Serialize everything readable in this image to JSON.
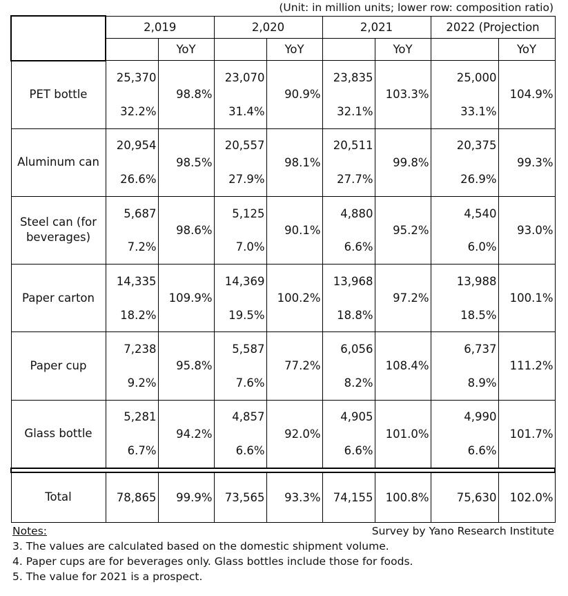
{
  "unit_note": "(Unit: in million units; lower row: composition ratio)",
  "years": [
    "2,019",
    "2,020",
    "2,021",
    "2022 (Projection"
  ],
  "yoy_label": "YoY",
  "rows": [
    {
      "label": "PET bottle",
      "values": [
        {
          "value": "25,370",
          "yoy": "98.8%",
          "ratio": "32.2%"
        },
        {
          "value": "23,070",
          "yoy": "90.9%",
          "ratio": "31.4%"
        },
        {
          "value": "23,835",
          "yoy": "103.3%",
          "ratio": "32.1%"
        },
        {
          "value": "25,000",
          "yoy": "104.9%",
          "ratio": "33.1%"
        }
      ]
    },
    {
      "label": "Aluminum can",
      "values": [
        {
          "value": "20,954",
          "yoy": "98.5%",
          "ratio": "26.6%"
        },
        {
          "value": "20,557",
          "yoy": "98.1%",
          "ratio": "27.9%"
        },
        {
          "value": "20,511",
          "yoy": "99.8%",
          "ratio": "27.7%"
        },
        {
          "value": "20,375",
          "yoy": "99.3%",
          "ratio": "26.9%"
        }
      ]
    },
    {
      "label": "Steel can (for beverages)",
      "values": [
        {
          "value": "5,687",
          "yoy": "98.6%",
          "ratio": "7.2%"
        },
        {
          "value": "5,125",
          "yoy": "90.1%",
          "ratio": "7.0%"
        },
        {
          "value": "4,880",
          "yoy": "95.2%",
          "ratio": "6.6%"
        },
        {
          "value": "4,540",
          "yoy": "93.0%",
          "ratio": "6.0%"
        }
      ]
    },
    {
      "label": "Paper carton",
      "values": [
        {
          "value": "14,335",
          "yoy": "109.9%",
          "ratio": "18.2%"
        },
        {
          "value": "14,369",
          "yoy": "100.2%",
          "ratio": "19.5%"
        },
        {
          "value": "13,968",
          "yoy": "97.2%",
          "ratio": "18.8%"
        },
        {
          "value": "13,988",
          "yoy": "100.1%",
          "ratio": "18.5%"
        }
      ]
    },
    {
      "label": "Paper cup",
      "values": [
        {
          "value": "7,238",
          "yoy": "95.8%",
          "ratio": "9.2%"
        },
        {
          "value": "5,587",
          "yoy": "77.2%",
          "ratio": "7.6%"
        },
        {
          "value": "6,056",
          "yoy": "108.4%",
          "ratio": "8.2%"
        },
        {
          "value": "6,737",
          "yoy": "111.2%",
          "ratio": "8.9%"
        }
      ]
    },
    {
      "label": "Glass bottle",
      "values": [
        {
          "value": "5,281",
          "yoy": "94.2%",
          "ratio": "6.7%"
        },
        {
          "value": "4,857",
          "yoy": "92.0%",
          "ratio": "6.6%"
        },
        {
          "value": "4,905",
          "yoy": "101.0%",
          "ratio": "6.6%"
        },
        {
          "value": "4,990",
          "yoy": "101.7%",
          "ratio": "6.6%"
        }
      ]
    }
  ],
  "total": {
    "label": "Total",
    "values": [
      {
        "value": "78,865",
        "yoy": "99.9%"
      },
      {
        "value": "73,565",
        "yoy": "93.3%"
      },
      {
        "value": "74,155",
        "yoy": "100.8%"
      },
      {
        "value": "75,630",
        "yoy": "102.0%"
      }
    ]
  },
  "notes": {
    "title": "Notes:",
    "survey": "Survey by Yano Research Institute",
    "lines": [
      "3.  The values are calculated based on the domestic shipment volume.",
      "4.  Paper cups are for beverages only. Glass bottles include those for foods.",
      "5. The value for 2021 is a prospect."
    ]
  }
}
